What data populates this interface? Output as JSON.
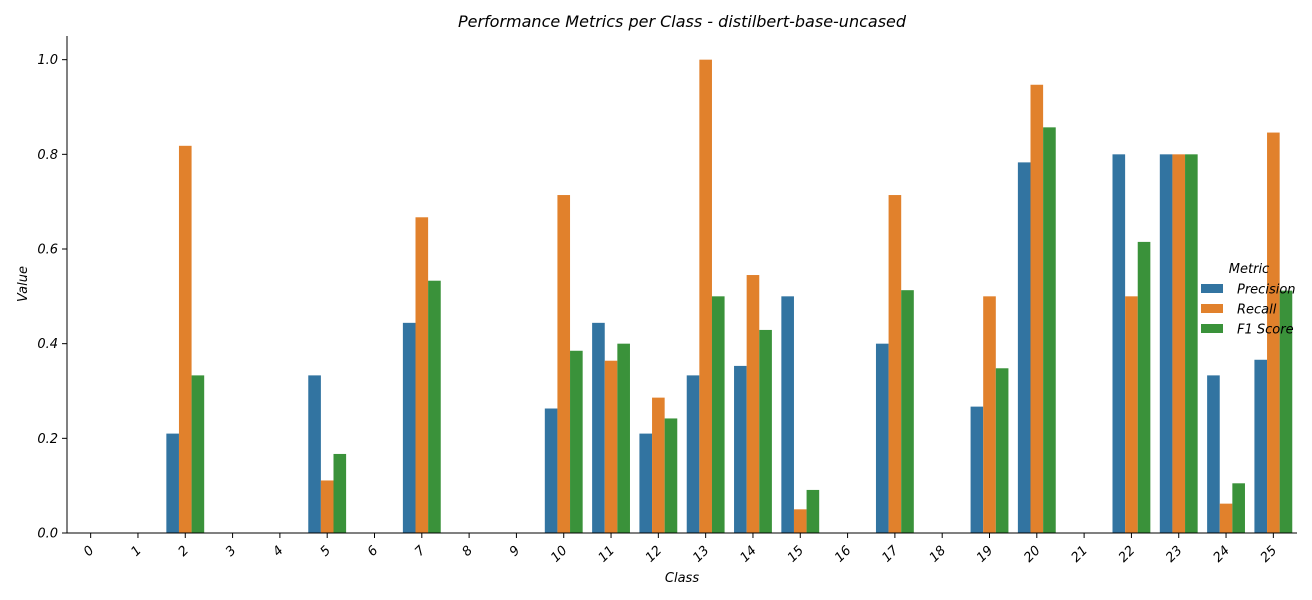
{
  "chart_data": {
    "type": "bar",
    "title": "Performance Metrics per Class - distilbert-base-uncased",
    "xlabel": "Class",
    "ylabel": "Value",
    "ylim": [
      0,
      1.05
    ],
    "yticks": [
      "0.0",
      "0.2",
      "0.4",
      "0.6",
      "0.8",
      "1.0"
    ],
    "categories": [
      "0",
      "1",
      "2",
      "3",
      "4",
      "5",
      "6",
      "7",
      "8",
      "9",
      "10",
      "11",
      "12",
      "13",
      "14",
      "15",
      "16",
      "17",
      "18",
      "19",
      "20",
      "21",
      "22",
      "23",
      "24",
      "25"
    ],
    "legend_title": "Metric",
    "legend_position": "right",
    "grid": false,
    "series": [
      {
        "name": "Precision",
        "color": "#3274a1",
        "values": [
          0,
          0,
          0.21,
          0,
          0,
          0.333,
          0,
          0.444,
          0,
          0,
          0.263,
          0.444,
          0.21,
          0.333,
          0.353,
          0.5,
          0,
          0.4,
          0,
          0.267,
          0.783,
          0,
          0.8,
          0.8,
          0.333,
          0.366
        ]
      },
      {
        "name": "Recall",
        "color": "#e1812c",
        "values": [
          0,
          0,
          0.818,
          0,
          0,
          0.111,
          0,
          0.667,
          0,
          0,
          0.714,
          0.364,
          0.286,
          1.0,
          0.545,
          0.05,
          0,
          0.714,
          0,
          0.5,
          0.947,
          0,
          0.5,
          0.8,
          0.062,
          0.846
        ]
      },
      {
        "name": "F1 Score",
        "color": "#3a923a",
        "values": [
          0,
          0,
          0.333,
          0,
          0,
          0.167,
          0,
          0.533,
          0,
          0,
          0.385,
          0.4,
          0.242,
          0.5,
          0.429,
          0.091,
          0,
          0.513,
          0,
          0.348,
          0.857,
          0,
          0.615,
          0.8,
          0.105,
          0.512
        ]
      }
    ]
  }
}
